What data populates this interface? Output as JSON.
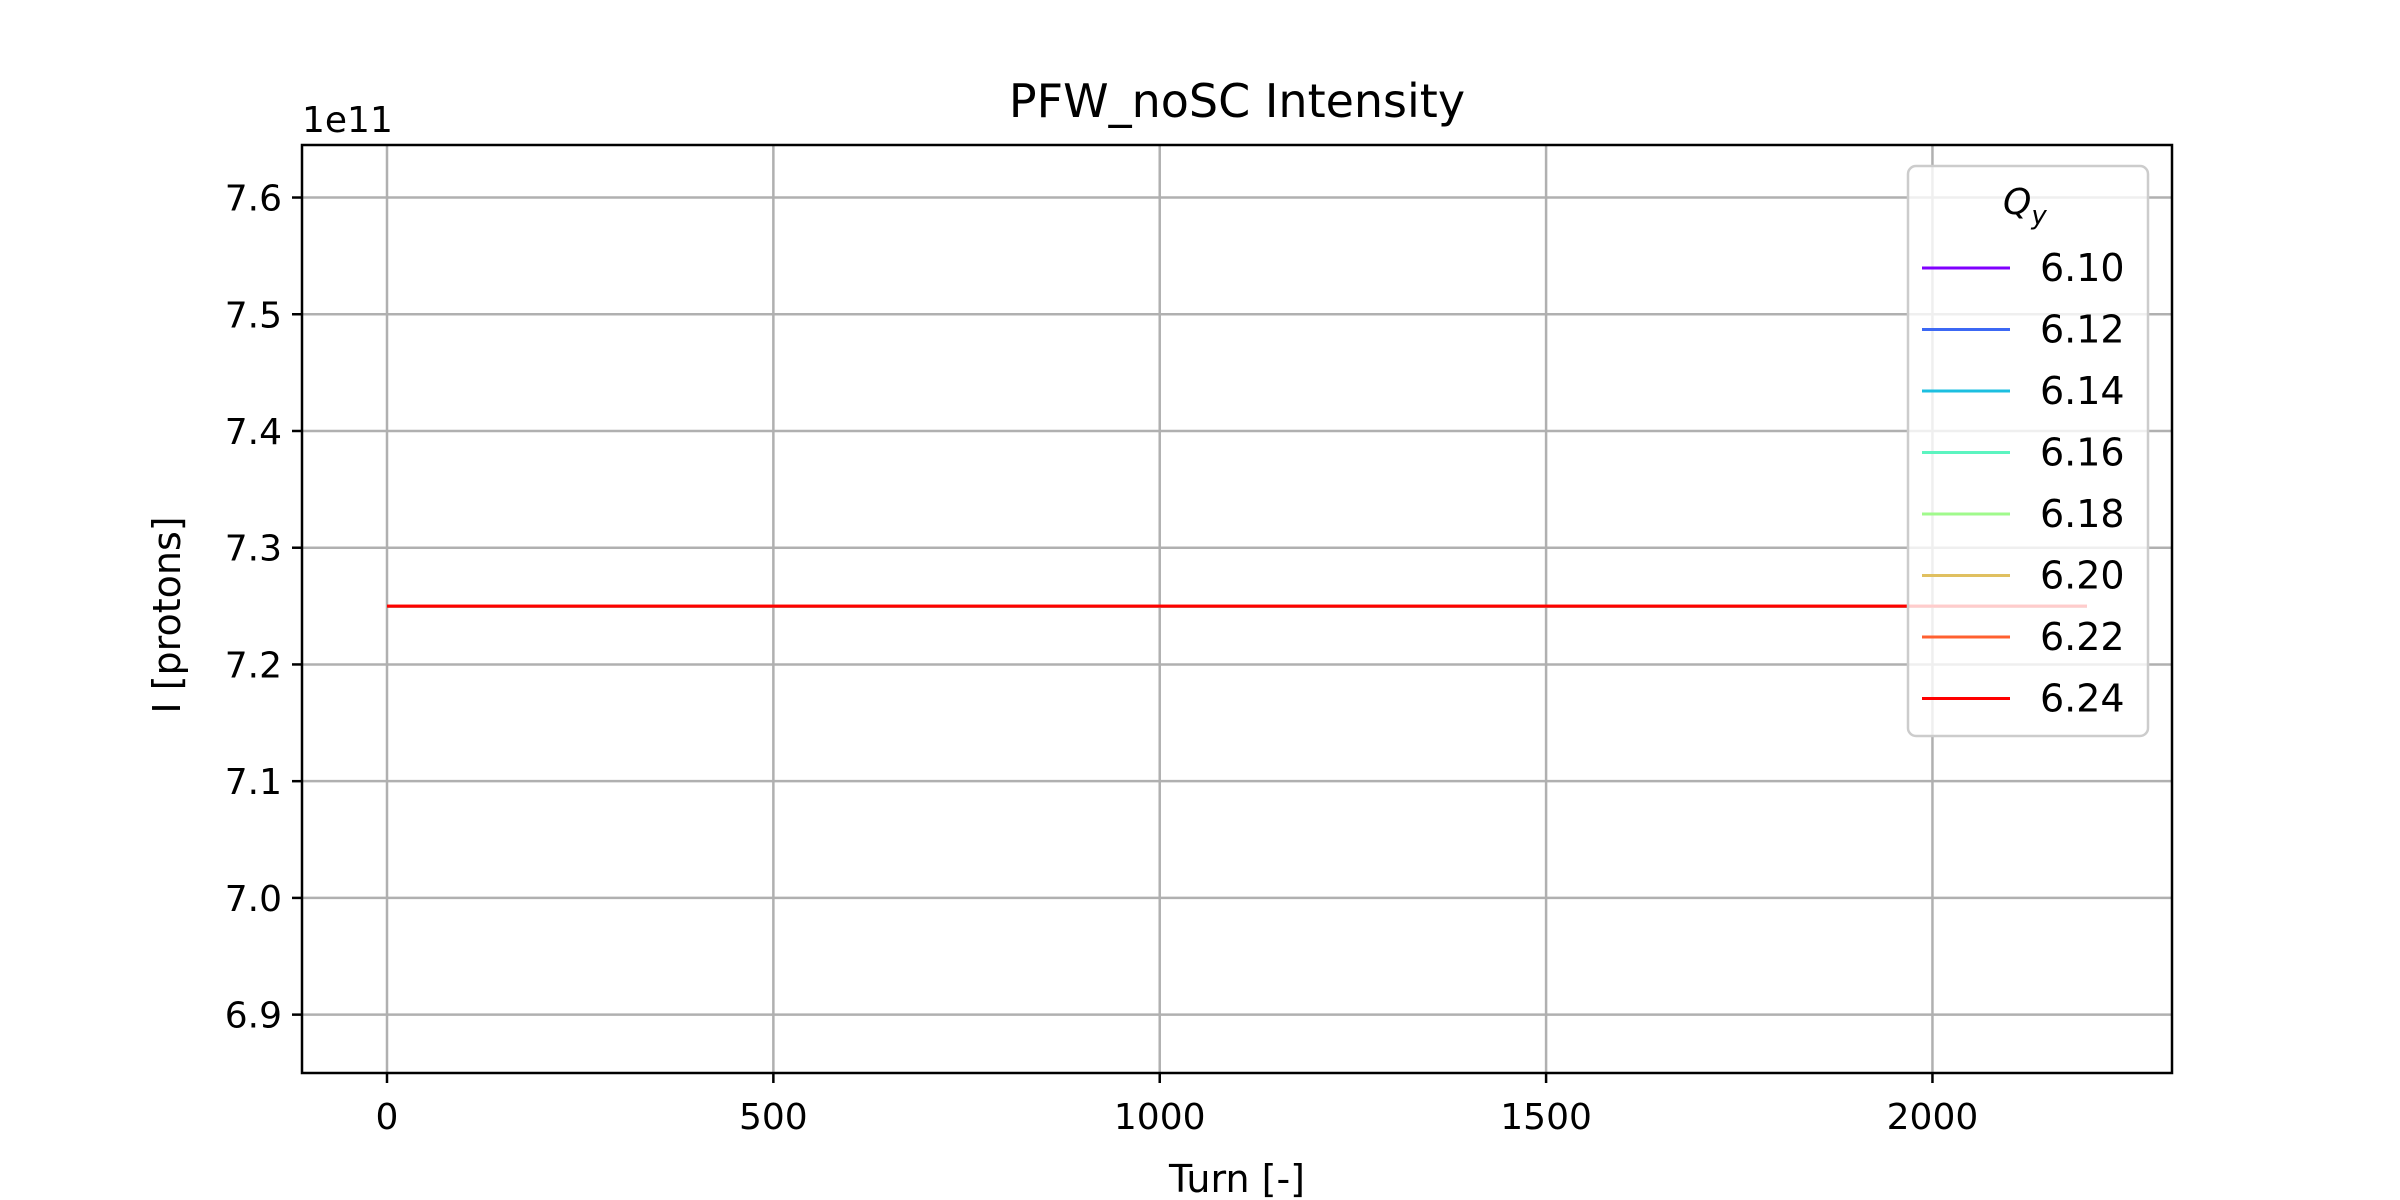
{
  "chart_data": {
    "type": "line",
    "title": "PFW_noSC Intensity",
    "xlabel": "Turn [-]",
    "ylabel": "I [protons]",
    "y_offset_label": "1e11",
    "xlim": [
      -110,
      2310
    ],
    "ylim": [
      6.85,
      7.645
    ],
    "x_ticks": [
      0,
      500,
      1000,
      1500,
      2000
    ],
    "x_tick_labels": [
      "0",
      "500",
      "1000",
      "1500",
      "2000"
    ],
    "y_ticks": [
      6.9,
      7.0,
      7.1,
      7.2,
      7.3,
      7.4,
      7.5,
      7.6
    ],
    "y_tick_labels": [
      "6.9",
      "7.0",
      "7.1",
      "7.2",
      "7.3",
      "7.4",
      "7.5",
      "7.6"
    ],
    "grid": true,
    "legend": {
      "title_main": "Q",
      "title_sub": "y",
      "placement": "top-right"
    },
    "series": [
      {
        "name": "6.10",
        "color": "#8000ff",
        "x": [
          0,
          2200
        ],
        "y": [
          7.25,
          7.25
        ]
      },
      {
        "name": "6.12",
        "color": "#3c68f4",
        "x": [
          0,
          2200
        ],
        "y": [
          7.25,
          7.25
        ]
      },
      {
        "name": "6.14",
        "color": "#1cbfe0",
        "x": [
          0,
          2200
        ],
        "y": [
          7.25,
          7.25
        ]
      },
      {
        "name": "6.16",
        "color": "#5cf4c0",
        "x": [
          0,
          2200
        ],
        "y": [
          7.25,
          7.25
        ]
      },
      {
        "name": "6.18",
        "color": "#a0fa8c",
        "x": [
          0,
          2200
        ],
        "y": [
          7.25,
          7.25
        ]
      },
      {
        "name": "6.20",
        "color": "#e0c060",
        "x": [
          0,
          2200
        ],
        "y": [
          7.25,
          7.25
        ]
      },
      {
        "name": "6.22",
        "color": "#ff6030",
        "x": [
          0,
          2200
        ],
        "y": [
          7.25,
          7.25
        ]
      },
      {
        "name": "6.24",
        "color": "#ff0000",
        "x": [
          0,
          2200
        ],
        "y": [
          7.25,
          7.25
        ]
      }
    ]
  }
}
